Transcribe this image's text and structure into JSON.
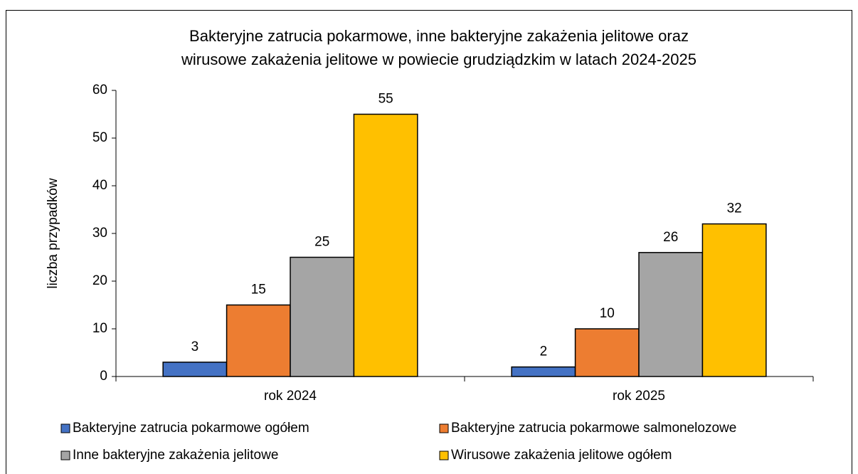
{
  "chart_data": {
    "type": "bar",
    "title": [
      "Bakteryjne zatrucia pokarmowe, inne bakteryjne zakażenia jelitowe oraz",
      "wirusowe zakażenia jelitowe w powiecie grudziądzkim w latach 2024-2025"
    ],
    "y_label": "liczba przypadków",
    "categories": [
      "rok 2024",
      "rok 2025"
    ],
    "series": [
      {
        "name": "Bakteryjne zatrucia pokarmowe ogółem",
        "color": "#4472c4",
        "values": [
          3,
          2
        ]
      },
      {
        "name": "Bakteryjne zatrucia pokarmowe salmonelozowe",
        "color": "#ed7d31",
        "values": [
          15,
          10
        ]
      },
      {
        "name": "Inne bakteryjne zakażenia jelitowe",
        "color": "#a5a5a5",
        "values": [
          25,
          26
        ]
      },
      {
        "name": "Wirusowe zakażenia jelitowe ogółem",
        "color": "#ffc000",
        "values": [
          55,
          32
        ]
      }
    ],
    "ylim": [
      0,
      60
    ],
    "yticks": [
      0,
      10,
      20,
      30,
      40,
      50,
      60
    ],
    "grid": false,
    "legend": "bottom"
  }
}
